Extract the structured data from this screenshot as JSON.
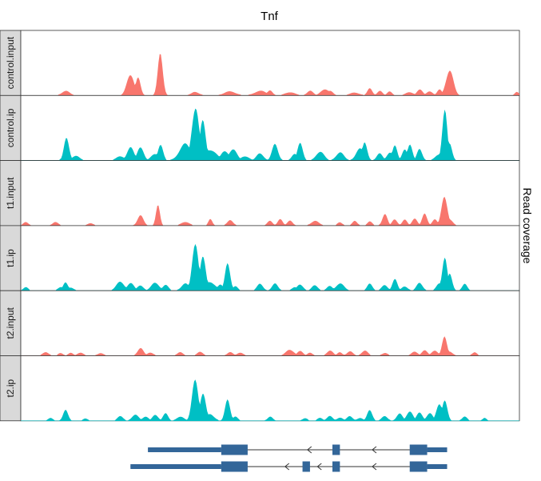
{
  "chart_data": {
    "type": "area",
    "title": "Tnf",
    "ylabel": "Read coverage",
    "xlabel": "",
    "x_range": [
      0,
      100
    ],
    "y_range": [
      0,
      100
    ],
    "colors": {
      "input": "#F8766D",
      "ip": "#00BFC4",
      "gene": "#336699",
      "strip": "#D9D9D9"
    },
    "panels": [
      {
        "label": "control.input",
        "type": "input",
        "peaks": [
          [
            9,
            8,
            0.8
          ],
          [
            22,
            40,
            0.7
          ],
          [
            23.5,
            30,
            0.5
          ],
          [
            28,
            72,
            0.5
          ],
          [
            35,
            6,
            0.8
          ],
          [
            42,
            7,
            1.2
          ],
          [
            48,
            8,
            1.2
          ],
          [
            50,
            10,
            0.5
          ],
          [
            54,
            6,
            1
          ],
          [
            58,
            9,
            0.6
          ],
          [
            61,
            12,
            0.8
          ],
          [
            62,
            8,
            0.6
          ],
          [
            67,
            5,
            1
          ],
          [
            70,
            12,
            0.5
          ],
          [
            72,
            9,
            0.5
          ],
          [
            74,
            7,
            0.5
          ],
          [
            78,
            6,
            0.8
          ],
          [
            80,
            10,
            0.6
          ],
          [
            82,
            8,
            0.6
          ],
          [
            84,
            10,
            0.5
          ],
          [
            86,
            48,
            0.7
          ],
          [
            99.5,
            7,
            0.4
          ]
        ]
      },
      {
        "label": "control.ip",
        "type": "ip",
        "peaks": [
          [
            9,
            8,
            0.7
          ],
          [
            9.2,
            42,
            0.5
          ],
          [
            11,
            8,
            0.8
          ],
          [
            20,
            8,
            0.8
          ],
          [
            22,
            22,
            0.7
          ],
          [
            24,
            26,
            0.6
          ],
          [
            27,
            12,
            0.8
          ],
          [
            28,
            30,
            0.5
          ],
          [
            33,
            28,
            1.2
          ],
          [
            35,
            100,
            0.7
          ],
          [
            36.5,
            66,
            0.6
          ],
          [
            38,
            20,
            1.2
          ],
          [
            41,
            17,
            0.8
          ],
          [
            42.5,
            20,
            0.8
          ],
          [
            45,
            8,
            0.8
          ],
          [
            48,
            13,
            0.7
          ],
          [
            51,
            28,
            0.6
          ],
          [
            55,
            12,
            0.6
          ],
          [
            56,
            35,
            0.5
          ],
          [
            60,
            16,
            0.8
          ],
          [
            64,
            14,
            0.8
          ],
          [
            68,
            20,
            0.8
          ],
          [
            69,
            32,
            0.5
          ],
          [
            72,
            12,
            0.6
          ],
          [
            74,
            15,
            0.6
          ],
          [
            75,
            25,
            0.5
          ],
          [
            77,
            22,
            0.5
          ],
          [
            78,
            28,
            0.5
          ],
          [
            80,
            22,
            0.5
          ],
          [
            84,
            12,
            0.8
          ],
          [
            85,
            90,
            0.5
          ],
          [
            86,
            28,
            0.5
          ]
        ]
      },
      {
        "label": "t1.input",
        "type": "input",
        "peaks": [
          [
            1,
            7,
            0.5
          ],
          [
            7,
            6,
            0.6
          ],
          [
            14,
            4,
            0.6
          ],
          [
            24,
            17,
            0.6
          ],
          [
            27.5,
            34,
            0.4
          ],
          [
            33,
            7,
            0.8
          ],
          [
            38,
            11,
            0.4
          ],
          [
            42,
            9,
            0.6
          ],
          [
            50,
            9,
            0.5
          ],
          [
            52,
            11,
            0.5
          ],
          [
            54,
            10,
            0.5
          ],
          [
            59,
            8,
            0.8
          ],
          [
            64,
            6,
            0.5
          ],
          [
            67,
            8,
            0.5
          ],
          [
            70,
            7,
            0.5
          ],
          [
            73,
            20,
            0.5
          ],
          [
            75,
            12,
            0.5
          ],
          [
            77,
            10,
            0.5
          ],
          [
            79,
            14,
            0.5
          ],
          [
            81,
            20,
            0.5
          ],
          [
            83,
            12,
            0.5
          ],
          [
            85,
            50,
            0.6
          ],
          [
            86,
            12,
            0.6
          ]
        ]
      },
      {
        "label": "t1.ip",
        "type": "ip",
        "peaks": [
          [
            1,
            6,
            0.5
          ],
          [
            8,
            6,
            0.6
          ],
          [
            9,
            14,
            0.5
          ],
          [
            10,
            6,
            0.6
          ],
          [
            20,
            16,
            0.8
          ],
          [
            22,
            13,
            0.7
          ],
          [
            24,
            10,
            0.6
          ],
          [
            27,
            14,
            0.8
          ],
          [
            29,
            10,
            0.6
          ],
          [
            33,
            12,
            0.8
          ],
          [
            35,
            92,
            0.6
          ],
          [
            36.5,
            56,
            0.6
          ],
          [
            38,
            16,
            1
          ],
          [
            40,
            10,
            0.6
          ],
          [
            41.5,
            52,
            0.5
          ],
          [
            43,
            8,
            0.5
          ],
          [
            48,
            12,
            0.6
          ],
          [
            51,
            12,
            0.6
          ],
          [
            55,
            6,
            0.6
          ],
          [
            56,
            12,
            0.6
          ],
          [
            59,
            10,
            0.6
          ],
          [
            62,
            8,
            0.6
          ],
          [
            64,
            13,
            0.8
          ],
          [
            70,
            14,
            0.5
          ],
          [
            73,
            10,
            0.6
          ],
          [
            75,
            20,
            0.5
          ],
          [
            77,
            8,
            0.6
          ],
          [
            80,
            14,
            0.6
          ],
          [
            84,
            14,
            0.6
          ],
          [
            85,
            62,
            0.5
          ],
          [
            86,
            28,
            0.5
          ],
          [
            89,
            12,
            0.5
          ]
        ]
      },
      {
        "label": "t2.input",
        "type": "input",
        "peaks": [
          [
            5,
            7,
            0.6
          ],
          [
            8,
            5,
            0.5
          ],
          [
            10,
            5,
            0.5
          ],
          [
            12,
            6,
            0.6
          ],
          [
            16,
            5,
            0.6
          ],
          [
            24,
            13,
            0.6
          ],
          [
            26,
            6,
            0.6
          ],
          [
            32,
            6,
            0.6
          ],
          [
            36,
            7,
            0.6
          ],
          [
            42,
            6,
            0.6
          ],
          [
            44,
            6,
            0.6
          ],
          [
            54,
            11,
            0.8
          ],
          [
            56,
            8,
            0.6
          ],
          [
            58,
            6,
            0.5
          ],
          [
            62,
            10,
            0.6
          ],
          [
            64,
            6,
            0.5
          ],
          [
            66,
            8,
            0.6
          ],
          [
            69,
            10,
            0.6
          ],
          [
            73,
            5,
            0.6
          ],
          [
            79,
            8,
            0.6
          ],
          [
            81,
            9,
            0.6
          ],
          [
            83,
            10,
            0.6
          ],
          [
            85,
            32,
            0.5
          ],
          [
            86,
            8,
            0.6
          ],
          [
            91,
            6,
            0.5
          ]
        ]
      },
      {
        "label": "t2.ip",
        "type": "ip",
        "peaks": [
          [
            6,
            5,
            0.5
          ],
          [
            9,
            18,
            0.5
          ],
          [
            13,
            4,
            0.5
          ],
          [
            20,
            8,
            0.6
          ],
          [
            23,
            10,
            0.7
          ],
          [
            25,
            8,
            0.6
          ],
          [
            27,
            10,
            0.6
          ],
          [
            29,
            14,
            0.5
          ],
          [
            32,
            8,
            0.7
          ],
          [
            35,
            80,
            0.6
          ],
          [
            36.5,
            46,
            0.6
          ],
          [
            38,
            12,
            0.8
          ],
          [
            41.5,
            38,
            0.5
          ],
          [
            43,
            8,
            0.5
          ],
          [
            50,
            8,
            0.5
          ],
          [
            57,
            5,
            0.5
          ],
          [
            60,
            6,
            0.5
          ],
          [
            62,
            8,
            0.6
          ],
          [
            64,
            6,
            0.6
          ],
          [
            66,
            8,
            0.6
          ],
          [
            68,
            5,
            0.6
          ],
          [
            70,
            20,
            0.5
          ],
          [
            73,
            8,
            0.6
          ],
          [
            76,
            12,
            0.6
          ],
          [
            78,
            18,
            0.6
          ],
          [
            80,
            14,
            0.6
          ],
          [
            82,
            14,
            0.6
          ],
          [
            84,
            30,
            0.6
          ],
          [
            85,
            40,
            0.5
          ],
          [
            89,
            8,
            0.5
          ],
          [
            93,
            5,
            0.4
          ]
        ]
      }
    ],
    "gene_track": {
      "transcripts": [
        {
          "start": 25.5,
          "end": 85.5,
          "exons": [
            [
              40.2,
              45.5
            ],
            [
              62.5,
              64.0
            ],
            [
              78.0,
              81.5
            ],
            [
              81.5,
              85.5,
              "thin"
            ],
            [
              25.5,
              40.2,
              "thin"
            ]
          ],
          "arrows": [
            57.5,
            70.5
          ]
        },
        {
          "start": 22.0,
          "end": 85.5,
          "exons": [
            [
              40.2,
              45.5
            ],
            [
              56.5,
              58.0
            ],
            [
              62.5,
              64.0
            ],
            [
              78.0,
              81.5
            ],
            [
              81.5,
              85.5,
              "thin"
            ],
            [
              22.0,
              40.2,
              "thin"
            ]
          ],
          "arrows": [
            53.0,
            59.5,
            70.5
          ]
        }
      ]
    }
  }
}
